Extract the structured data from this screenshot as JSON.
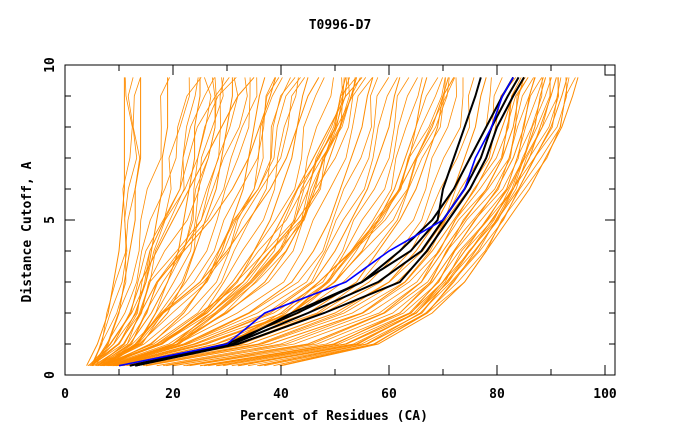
{
  "chart_data": {
    "type": "line",
    "title": "T0996-D7",
    "xlabel": "Percent of Residues (CA)",
    "ylabel": "Distance Cutoff, A",
    "xlim": [
      0,
      100
    ],
    "ylim": [
      0,
      10
    ],
    "x_ticks": [
      0,
      20,
      40,
      60,
      80,
      100
    ],
    "y_ticks": [
      0,
      5,
      10
    ],
    "grid": false,
    "colors": {
      "other_models": "#ff8c00",
      "highlight": "#0000ff",
      "reference": "#000000"
    },
    "y_levels": [
      0.3,
      1,
      2,
      3,
      4,
      5,
      6,
      7,
      8,
      9,
      9.6
    ],
    "series_orange": [
      [
        4,
        6,
        8,
        9,
        10,
        10.5,
        11,
        11,
        11,
        11,
        11
      ],
      [
        5,
        8,
        10,
        11,
        12,
        13,
        13,
        14,
        14,
        14,
        14
      ],
      [
        5,
        9,
        12,
        14,
        17,
        20,
        23,
        26,
        29,
        32,
        35
      ],
      [
        5,
        10,
        13,
        15,
        16,
        17,
        18,
        18,
        19,
        19,
        19
      ],
      [
        6,
        11,
        14,
        17,
        22,
        27,
        31,
        34,
        36,
        38,
        39
      ],
      [
        6,
        12,
        16,
        19,
        21,
        22,
        23,
        24,
        24,
        25,
        25
      ],
      [
        6,
        14,
        19,
        22,
        24,
        26,
        28,
        29,
        30,
        31,
        31
      ],
      [
        7,
        13,
        18,
        25,
        30,
        34,
        38,
        41,
        43,
        45,
        47
      ],
      [
        7,
        16,
        22,
        26,
        29,
        31,
        33,
        34,
        35,
        36,
        37
      ],
      [
        7,
        18,
        26,
        31,
        35,
        38,
        40,
        42,
        43,
        44,
        45
      ],
      [
        8,
        17,
        25,
        33,
        38,
        43,
        47,
        49,
        51,
        53,
        54
      ],
      [
        8,
        20,
        30,
        37,
        41,
        44,
        46,
        48,
        50,
        51,
        52
      ],
      [
        9,
        20,
        27,
        33,
        37,
        40,
        43,
        46,
        49,
        52,
        55
      ],
      [
        8,
        22,
        34,
        42,
        46,
        49,
        51,
        53,
        55,
        56,
        57
      ],
      [
        9,
        24,
        38,
        46,
        50,
        53,
        56,
        58,
        60,
        61,
        62
      ],
      [
        9,
        26,
        42,
        50,
        55,
        58,
        61,
        63,
        65,
        66,
        67
      ],
      [
        12,
        30,
        40,
        47,
        53,
        58,
        62,
        65,
        68,
        70,
        72
      ],
      [
        10,
        28,
        45,
        54,
        58,
        62,
        65,
        67,
        69,
        70,
        71
      ],
      [
        10,
        34,
        50,
        60,
        65,
        69,
        72,
        74,
        76,
        77,
        78
      ],
      [
        15,
        38,
        55,
        63,
        68,
        72,
        76,
        79,
        81,
        83,
        85
      ],
      [
        20,
        45,
        59,
        66,
        70,
        74,
        78,
        81,
        83,
        84,
        85
      ],
      [
        25,
        50,
        62,
        68,
        72,
        76,
        80,
        83,
        85,
        86,
        87
      ],
      [
        28,
        52,
        64,
        70,
        74,
        78,
        82,
        85,
        87,
        88,
        89
      ],
      [
        32,
        54,
        65,
        71,
        75,
        79,
        83,
        86,
        88,
        90,
        91
      ],
      [
        36,
        56,
        67,
        72,
        76,
        80,
        84,
        87,
        90,
        92,
        93
      ],
      [
        40,
        58,
        68,
        74,
        78,
        82,
        86,
        89,
        92,
        94,
        95
      ]
    ],
    "series_blue": [
      10,
      30,
      37,
      52,
      60,
      70,
      74,
      76,
      79,
      81,
      83
    ],
    "series_black": [
      [
        12,
        31,
        42,
        55,
        64,
        69,
        70,
        72,
        74,
        76,
        77
      ],
      [
        12,
        30,
        43,
        55,
        62,
        68,
        72,
        75,
        78,
        81,
        83
      ],
      [
        13,
        31,
        45,
        58,
        66,
        70,
        74,
        77,
        79,
        82,
        84
      ],
      [
        13,
        32,
        48,
        62,
        67,
        71,
        75,
        78,
        80,
        83,
        85
      ]
    ]
  }
}
